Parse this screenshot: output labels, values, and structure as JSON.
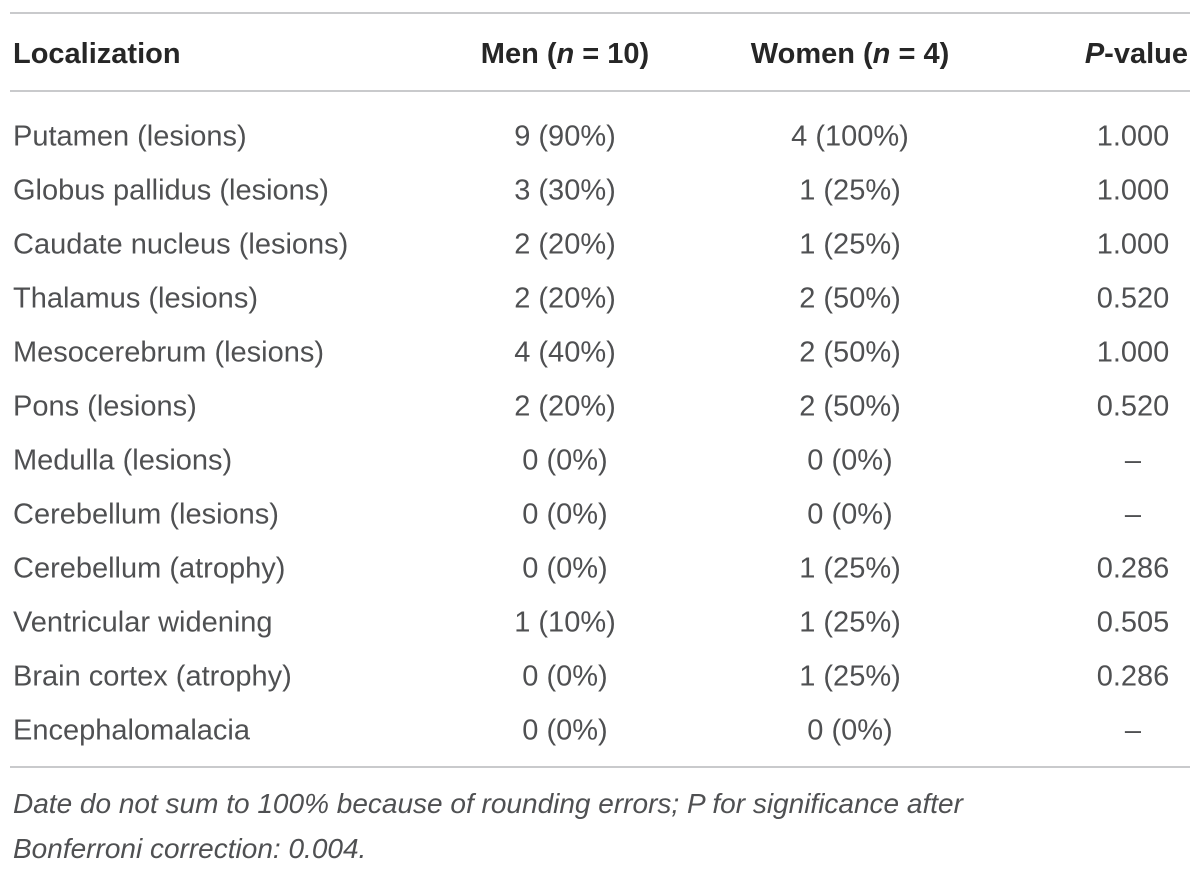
{
  "table": {
    "columns": {
      "localization": "Localization",
      "men": {
        "before": "Men (",
        "italic": "n",
        "after": " = 10)"
      },
      "women": {
        "before": "Women (",
        "italic": "n",
        "after": " = 4)"
      },
      "p_value": {
        "italic": "P",
        "after": "-value"
      }
    },
    "rows": [
      {
        "localization": "Putamen (lesions)",
        "men": "9 (90%)",
        "women": "4 (100%)",
        "p": "1.000"
      },
      {
        "localization": "Globus pallidus (lesions)",
        "men": "3 (30%)",
        "women": "1 (25%)",
        "p": "1.000"
      },
      {
        "localization": "Caudate nucleus (lesions)",
        "men": "2 (20%)",
        "women": "1 (25%)",
        "p": "1.000"
      },
      {
        "localization": "Thalamus (lesions)",
        "men": "2 (20%)",
        "women": "2 (50%)",
        "p": "0.520"
      },
      {
        "localization": "Mesocerebrum (lesions)",
        "men": "4 (40%)",
        "women": "2 (50%)",
        "p": "1.000"
      },
      {
        "localization": "Pons (lesions)",
        "men": "2 (20%)",
        "women": "2 (50%)",
        "p": "0.520"
      },
      {
        "localization": "Medulla (lesions)",
        "men": "0 (0%)",
        "women": "0 (0%)",
        "p": "–"
      },
      {
        "localization": "Cerebellum (lesions)",
        "men": "0 (0%)",
        "women": "0 (0%)",
        "p": "–"
      },
      {
        "localization": "Cerebellum (atrophy)",
        "men": "0 (0%)",
        "women": "1 (25%)",
        "p": "0.286"
      },
      {
        "localization": "Ventricular widening",
        "men": "1 (10%)",
        "women": "1 (25%)",
        "p": "0.505"
      },
      {
        "localization": "Brain cortex (atrophy)",
        "men": "0 (0%)",
        "women": "1 (25%)",
        "p": "0.286"
      },
      {
        "localization": "Encephalomalacia",
        "men": "0 (0%)",
        "women": "0 (0%)",
        "p": "–"
      }
    ]
  },
  "footnote": {
    "line1": "Date do not sum to 100% because of rounding errors; P for significance after",
    "line2": "Bonferroni correction: 0.004."
  },
  "colors": {
    "rule": "#c9cacc",
    "header_text": "#262626",
    "body_text": "#4f5052",
    "background": "#ffffff"
  }
}
